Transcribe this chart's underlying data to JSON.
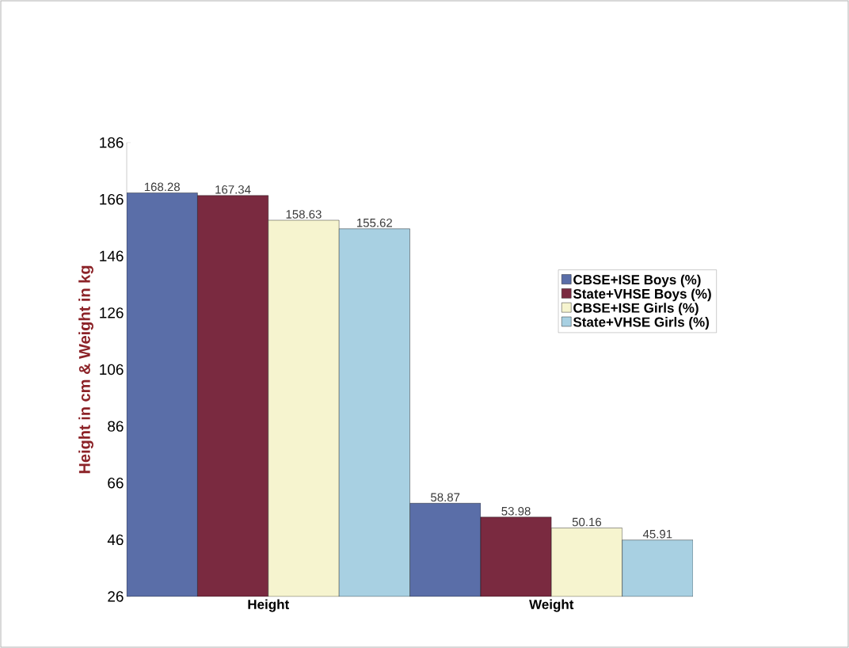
{
  "chart_data": {
    "type": "bar",
    "ylabel": "Height in cm & Weight in kg",
    "categories": [
      "Height",
      "Weight"
    ],
    "series": [
      {
        "name": "CBSE+ISE Boys (%)",
        "color": "#5a6ea8",
        "values": [
          168.28,
          58.87
        ]
      },
      {
        "name": "State+VHSE Boys (%)",
        "color": "#7a2a40",
        "values": [
          167.34,
          53.98
        ]
      },
      {
        "name": "CBSE+ISE  Girls (%)",
        "color": "#f6f4cf",
        "values": [
          158.63,
          50.16
        ]
      },
      {
        "name": "State+VHSE  Girls (%)",
        "color": "#a8d0e2",
        "values": [
          155.62,
          45.91
        ]
      }
    ],
    "ylim": [
      26,
      186
    ],
    "yticks": [
      26,
      46,
      66,
      86,
      106,
      126,
      146,
      166,
      186
    ],
    "data_labels": true,
    "legend": "right",
    "grid": false
  }
}
